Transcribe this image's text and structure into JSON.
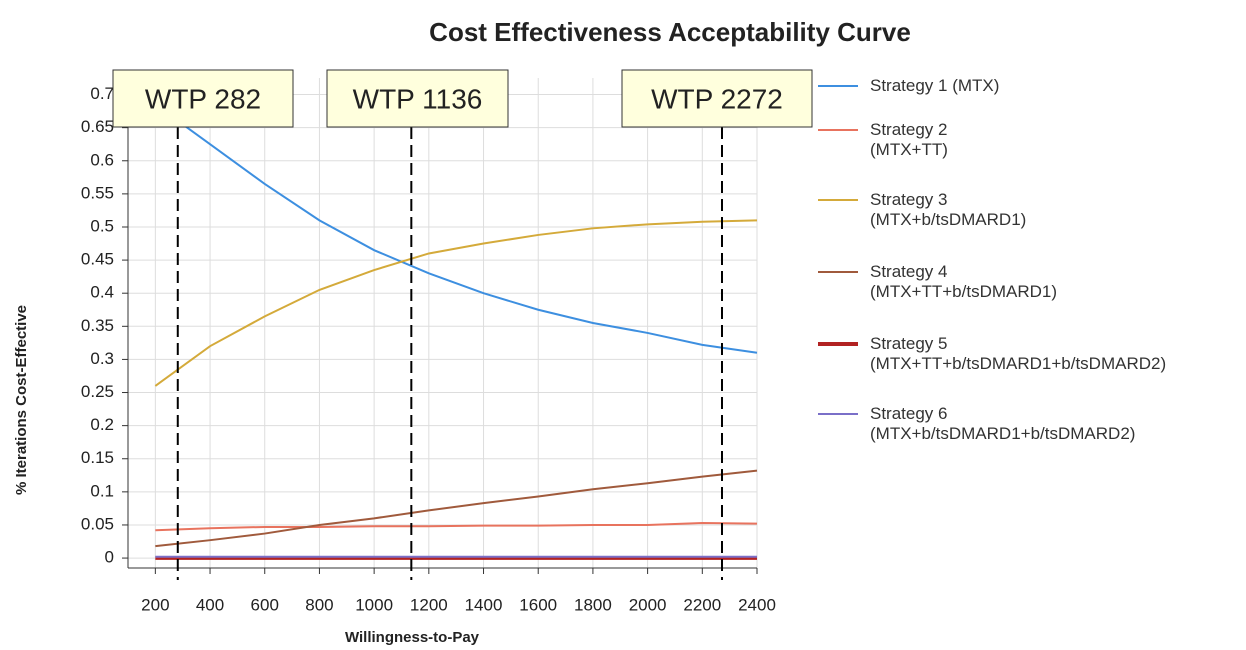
{
  "chart_data": {
    "type": "line",
    "title": "Cost Effectiveness Acceptability Curve",
    "x_label": "Willingness-to-Pay",
    "y_label": "% Iterations Cost-Effective",
    "x": [
      200,
      400,
      600,
      800,
      1000,
      1200,
      1400,
      1600,
      1800,
      2000,
      2200,
      2400
    ],
    "series": [
      {
        "name": "Strategy 1 (MTX)",
        "color": "#3d8fe0",
        "values": [
          0.685,
          0.625,
          0.565,
          0.51,
          0.465,
          0.43,
          0.4,
          0.375,
          0.355,
          0.34,
          0.322,
          0.31
        ]
      },
      {
        "name": "Strategy 2\n(MTX+TT)",
        "color": "#e8735e",
        "values": [
          0.042,
          0.045,
          0.047,
          0.047,
          0.048,
          0.048,
          0.049,
          0.049,
          0.05,
          0.05,
          0.053,
          0.052
        ]
      },
      {
        "name": "Strategy 3\n(MTX+b/tsDMARD1)",
        "color": "#d4aa3a",
        "values": [
          0.26,
          0.32,
          0.365,
          0.405,
          0.435,
          0.46,
          0.475,
          0.488,
          0.498,
          0.504,
          0.508,
          0.51
        ]
      },
      {
        "name": "Strategy 4\n(MTX+TT+b/tsDMARD1)",
        "color": "#a05a3c",
        "values": [
          0.018,
          0.027,
          0.037,
          0.05,
          0.06,
          0.072,
          0.083,
          0.093,
          0.104,
          0.113,
          0.123,
          0.132
        ]
      },
      {
        "name": "Strategy 5\n(MTX+TT+b/tsDMARD1+b/tsDMARD2)",
        "color": "#b22222",
        "values": [
          0,
          0,
          0,
          0,
          0,
          0,
          0,
          0,
          0,
          0,
          0,
          0
        ]
      },
      {
        "name": "Strategy 6\n(MTX+b/tsDMARD1+b/tsDMARD2)",
        "color": "#7a6fc8",
        "values": [
          0.002,
          0.002,
          0.002,
          0.002,
          0.002,
          0.002,
          0.002,
          0.002,
          0.002,
          0.002,
          0.002,
          0.002
        ]
      }
    ],
    "annotations": [
      {
        "x": 282,
        "label": "WTP 282"
      },
      {
        "x": 1136,
        "label": "WTP 1136"
      },
      {
        "x": 2272,
        "label": "WTP 2272"
      }
    ],
    "xlim": [
      100,
      2400
    ],
    "ylim": [
      -0.015,
      0.725
    ],
    "xticks": [
      200,
      400,
      600,
      800,
      1000,
      1200,
      1400,
      1600,
      1800,
      2000,
      2200,
      2400
    ],
    "yticks": [
      0,
      0.05,
      0.1,
      0.15,
      0.2,
      0.25,
      0.3,
      0.35,
      0.4,
      0.45,
      0.5,
      0.55,
      0.6,
      0.65,
      0.7
    ],
    "grid": true
  }
}
